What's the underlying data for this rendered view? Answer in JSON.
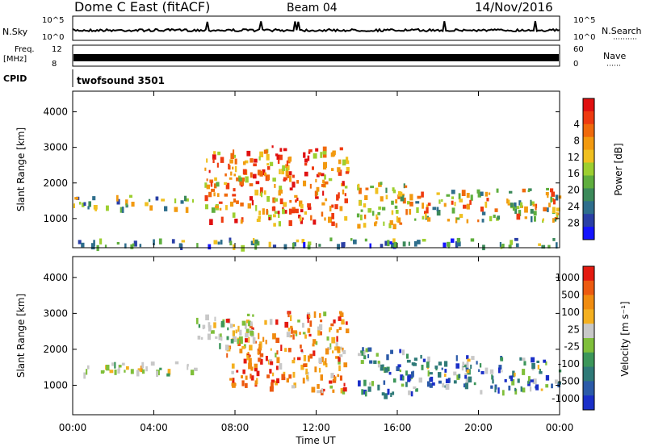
{
  "header": {
    "station": "Dome C East (fitACF)",
    "beam": "Beam 04",
    "date": "14/Nov/2016"
  },
  "strip_labels": {
    "nsky": "N.Sky",
    "nsearch": "N.Search",
    "freq_line1": "Freq.",
    "freq_line2": "[MHz]",
    "nave": "Nave",
    "cpid": "CPID",
    "cpid_value": "twofsound 3501",
    "sky_ticks": [
      "10^5",
      "10^0"
    ],
    "freq_ticks": [
      "12",
      "8"
    ],
    "nave_ticks": [
      "60",
      "0"
    ]
  },
  "chart_data": [
    {
      "type": "heatmap",
      "name": "power",
      "ylabel": "Slant Range [km]",
      "xlabel": "",
      "x_ticks": [
        "00:00",
        "04:00",
        "08:00",
        "12:00",
        "16:00",
        "20:00",
        "00:00"
      ],
      "y_ticks": [
        1000,
        2000,
        3000,
        4000
      ],
      "xlim": [
        0,
        24
      ],
      "ylim": [
        180,
        4580
      ],
      "colorbar": {
        "label": "Power [dB]",
        "ticks": [
          "4",
          "8",
          "12",
          "16",
          "20",
          "24",
          "28"
        ],
        "colors": [
          "#1414ff",
          "#2a3fa6",
          "#2e6e8c",
          "#3c8a5a",
          "#5fae3e",
          "#9dcf30",
          "#f0c020",
          "#f29a10",
          "#f06a0c",
          "#ee3a10",
          "#e01010"
        ]
      },
      "regions": [
        {
          "t0": 0.0,
          "t1": 6.0,
          "r0": 1250,
          "r1": 1600,
          "mix": [
            0.2,
            0.45,
            0.6
          ]
        },
        {
          "t0": 6.5,
          "t1": 9.5,
          "r0": 900,
          "r1": 2900,
          "mix": [
            0.55,
            0.75,
            0.9
          ]
        },
        {
          "t0": 9.5,
          "t1": 13.5,
          "r0": 800,
          "r1": 3000,
          "mix": [
            0.6,
            0.8,
            1.0
          ]
        },
        {
          "t0": 14.0,
          "t1": 16.5,
          "r0": 700,
          "r1": 2000,
          "mix": [
            0.35,
            0.55,
            0.7
          ]
        },
        {
          "t0": 16.5,
          "t1": 24.0,
          "r0": 900,
          "r1": 1800,
          "mix": [
            0.3,
            0.6,
            0.8
          ]
        },
        {
          "t0": 0.0,
          "t1": 24.0,
          "r0": 180,
          "r1": 400,
          "mix": [
            0.1,
            0.3,
            0.5
          ]
        }
      ]
    },
    {
      "type": "heatmap",
      "name": "velocity",
      "ylabel": "Slant Range [km]",
      "xlabel": "Time UT",
      "x_ticks": [
        "00:00",
        "04:00",
        "08:00",
        "12:00",
        "16:00",
        "20:00",
        "00:00"
      ],
      "y_ticks": [
        1000,
        2000,
        3000,
        4000
      ],
      "xlim": [
        0,
        24
      ],
      "ylim": [
        180,
        4580
      ],
      "colorbar": {
        "label": "Velocity [m s⁻¹]",
        "ticks": [
          "1000",
          "500",
          "100",
          "25",
          "-25",
          "-100",
          "-500",
          "-1000"
        ],
        "colors": [
          "#1a2fc8",
          "#2b5aa8",
          "#2f7a78",
          "#3c965a",
          "#7fbf3a",
          "#c8c8c8",
          "#f4b020",
          "#f08c10",
          "#ec5a10",
          "#e41a10"
        ]
      },
      "regions": [
        {
          "t0": 0.0,
          "t1": 6.0,
          "r0": 1250,
          "r1": 1600,
          "mix": [
            0.45,
            0.5,
            0.6
          ]
        },
        {
          "t0": 7.5,
          "t1": 9.5,
          "r0": 900,
          "r1": 2800,
          "mix": [
            0.7,
            0.85,
            0.95
          ]
        },
        {
          "t0": 9.5,
          "t1": 13.5,
          "r0": 800,
          "r1": 3000,
          "mix": [
            0.6,
            0.75,
            0.95
          ]
        },
        {
          "t0": 14.0,
          "t1": 17.0,
          "r0": 700,
          "r1": 2000,
          "mix": [
            0.1,
            0.25,
            0.45
          ]
        },
        {
          "t0": 17.0,
          "t1": 24.0,
          "r0": 800,
          "r1": 1800,
          "mix": [
            0.05,
            0.2,
            0.5
          ]
        },
        {
          "t0": 6.0,
          "t1": 9.0,
          "r0": 2000,
          "r1": 3000,
          "mix": [
            0.45,
            0.5,
            0.55
          ]
        }
      ]
    }
  ]
}
